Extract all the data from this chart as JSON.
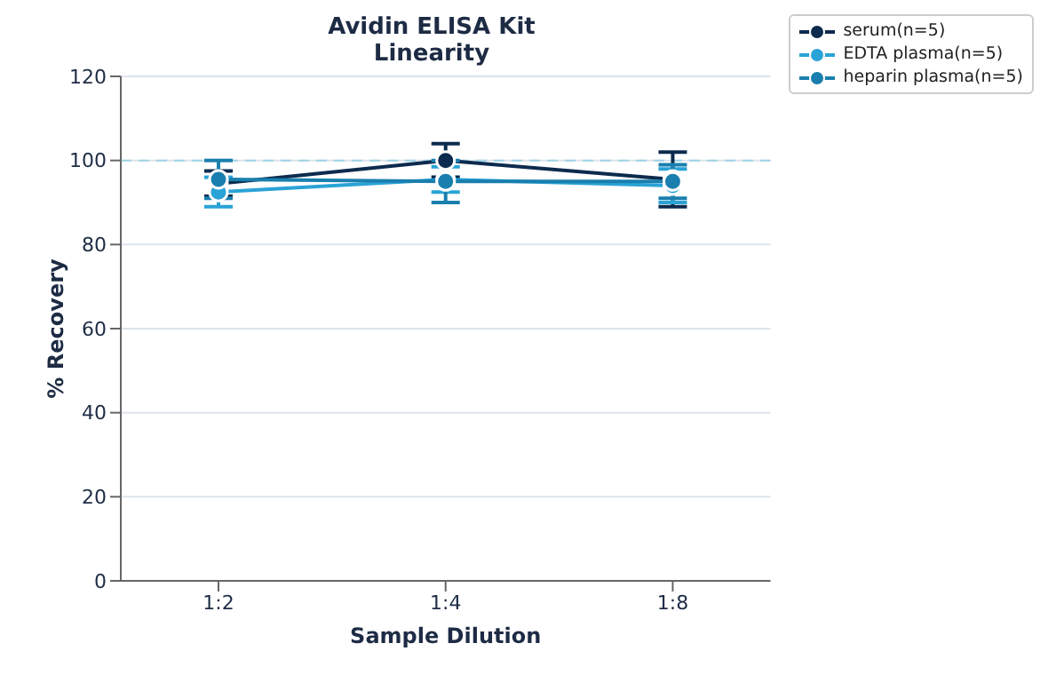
{
  "chart_data": {
    "type": "line",
    "title": "Avidin ELISA Kit",
    "subtitle": "Linearity",
    "xlabel": "Sample Dilution",
    "ylabel": "% Recovery",
    "categories": [
      "1:2",
      "1:4",
      "1:8"
    ],
    "series": [
      {
        "name": "serum(n=5)",
        "color": "#0d2b4e",
        "values": [
          94.5,
          100,
          95.5
        ],
        "errors": [
          3,
          4,
          6.5
        ]
      },
      {
        "name": "EDTA plasma(n=5)",
        "color": "#2aa3d6",
        "values": [
          92.5,
          95.5,
          94
        ],
        "errors": [
          3.5,
          3,
          4
        ]
      },
      {
        "name": "heparin plasma(n=5)",
        "color": "#1a7fae",
        "values": [
          95.5,
          95,
          95
        ],
        "errors": [
          4.5,
          5,
          4
        ]
      }
    ],
    "ylim": [
      0,
      120
    ],
    "yticks": [
      0,
      20,
      40,
      60,
      80,
      100,
      120
    ],
    "grid": "y",
    "legend": "top right",
    "marker": "circle",
    "line_style": "solid",
    "ref_lines": [
      {
        "axis": "y",
        "value": 100,
        "color": "#9fd3e6",
        "line_style": "dashed"
      }
    ]
  }
}
